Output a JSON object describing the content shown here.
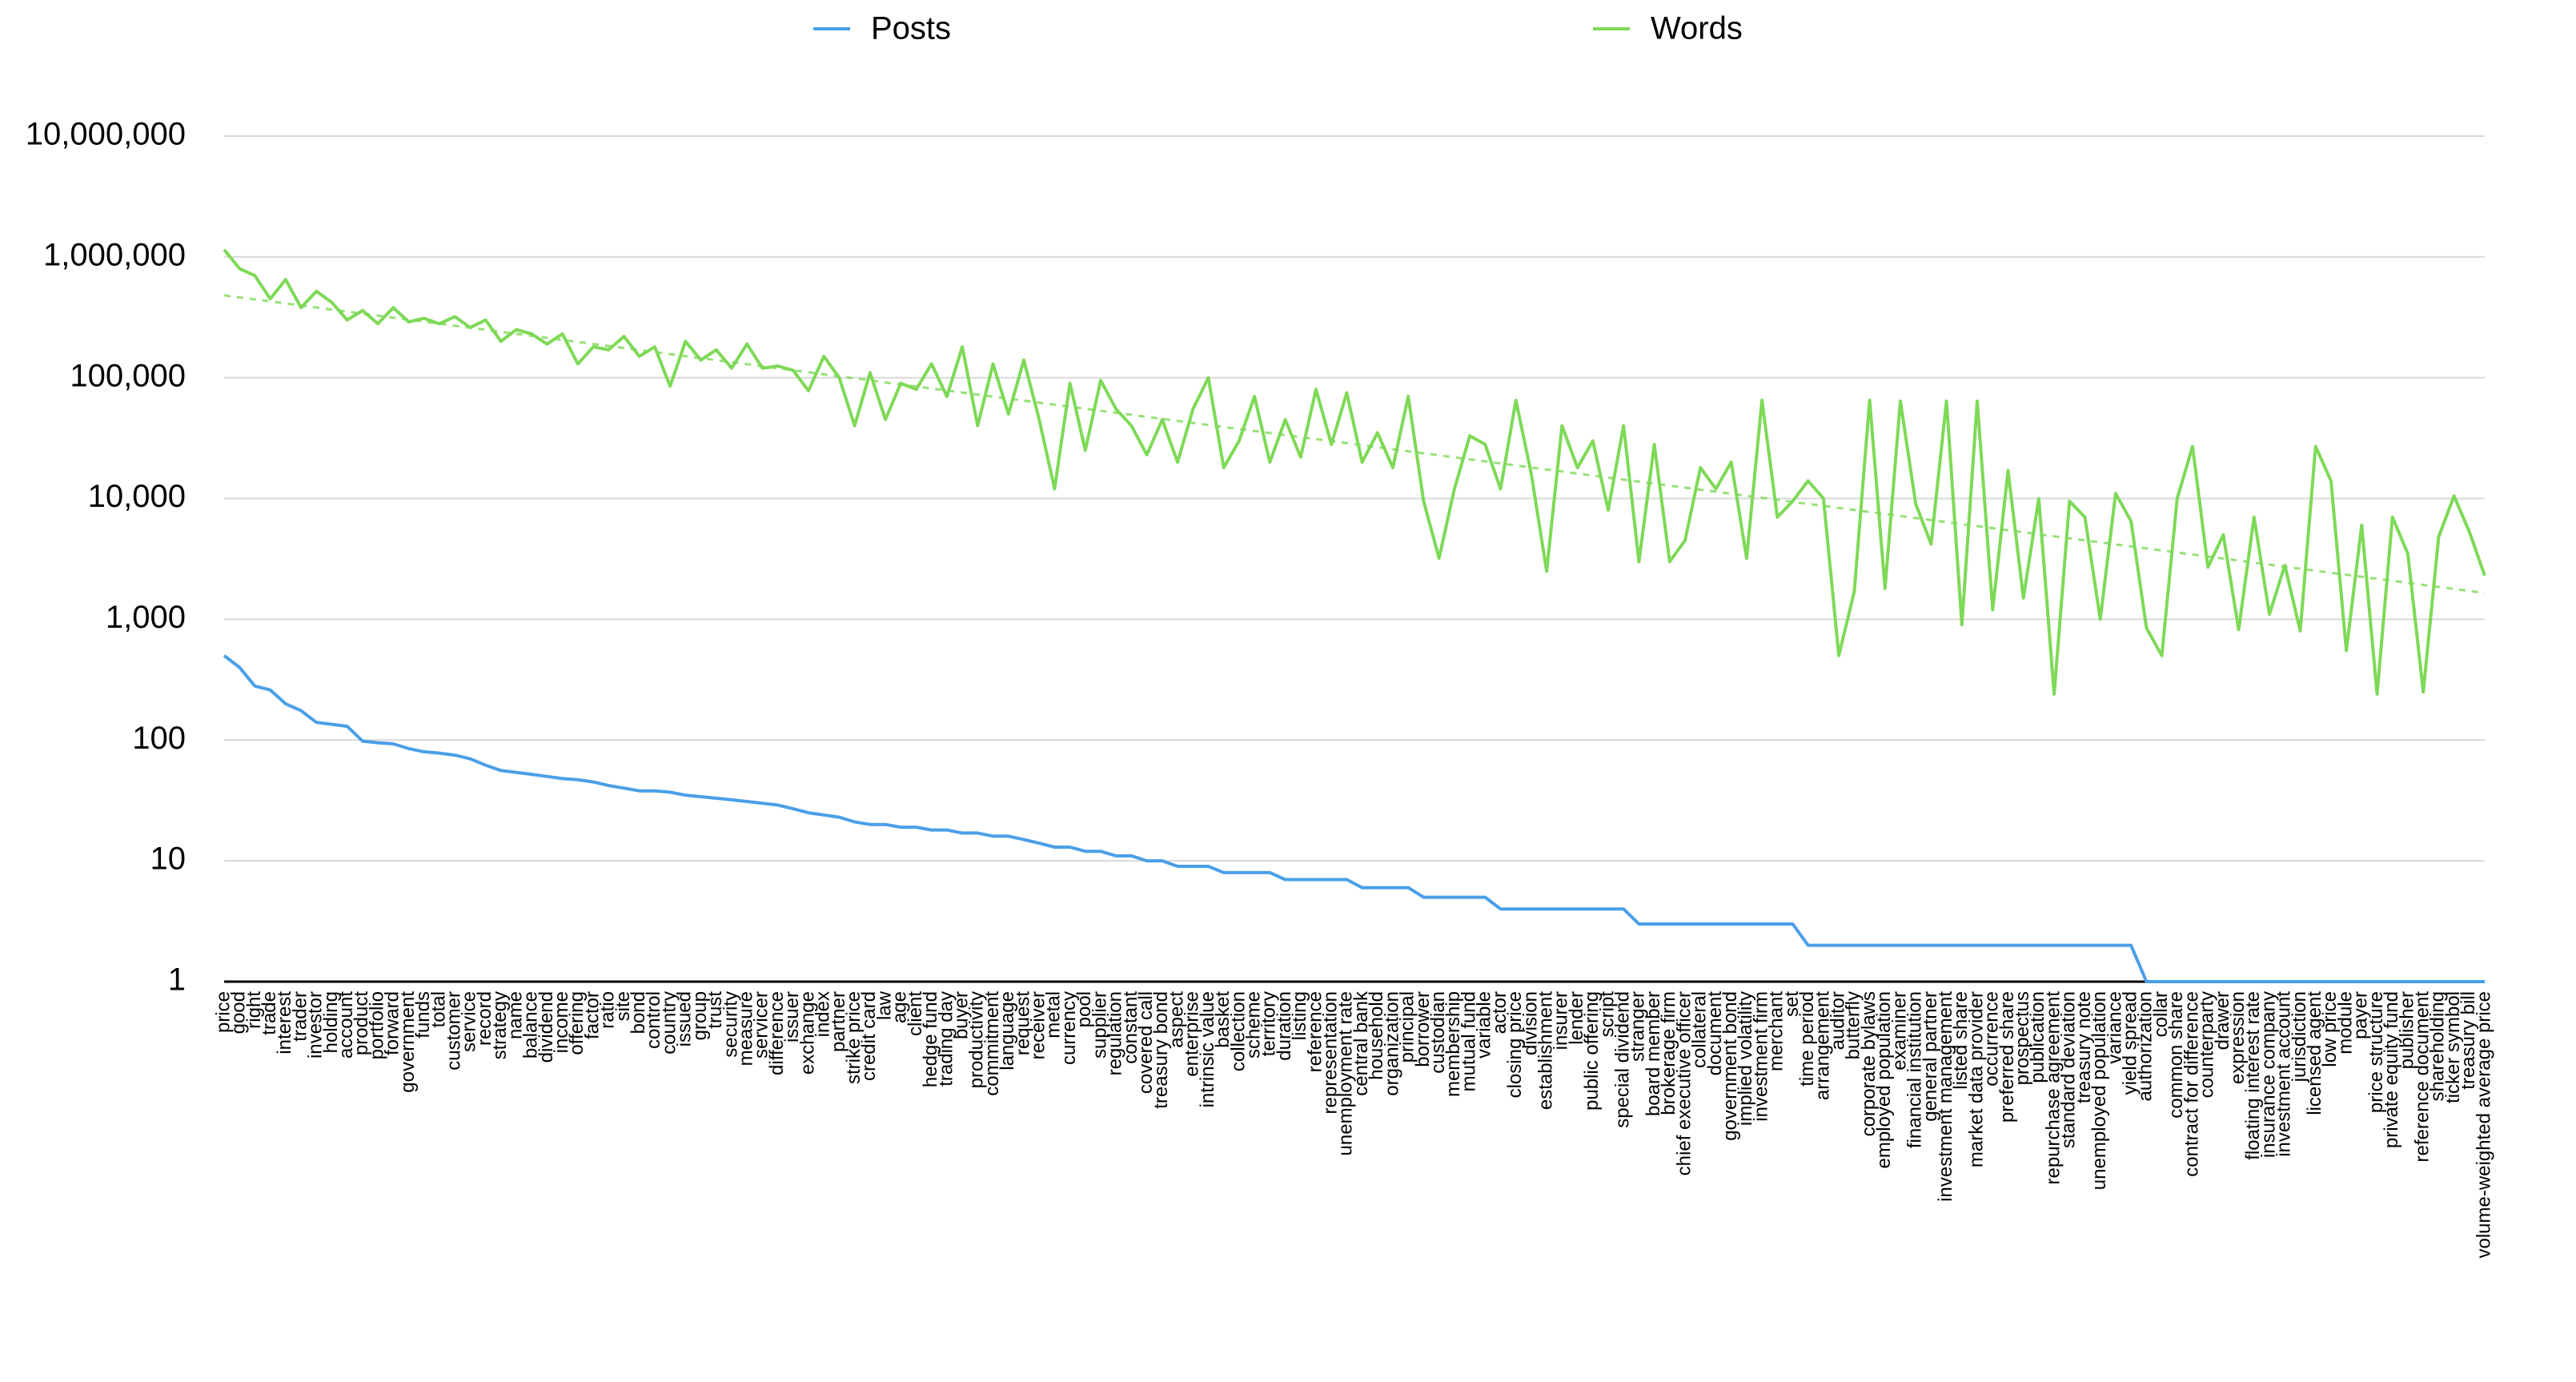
{
  "chart_data": {
    "type": "line",
    "log_scale": true,
    "grid": true,
    "legend_position": "top",
    "categories": [
      "price",
      "good",
      "right",
      "trade",
      "interest",
      "trader",
      "investor",
      "holding",
      "account",
      "product",
      "portfolio",
      "forward",
      "government",
      "funds",
      "total",
      "customer",
      "service",
      "record",
      "strategy",
      "name",
      "balance",
      "dividend",
      "income",
      "offering",
      "factor",
      "ratio",
      "site",
      "bond",
      "control",
      "country",
      "issued",
      "group",
      "trust",
      "security",
      "measure",
      "servicer",
      "difference",
      "issuer",
      "exchange",
      "index",
      "partner",
      "strike price",
      "credit card",
      "law",
      "age",
      "client",
      "hedge fund",
      "trading day",
      "buyer",
      "productivity",
      "commitment",
      "language",
      "request",
      "receiver",
      "metal",
      "currency",
      "pool",
      "supplier",
      "regulation",
      "constant",
      "covered call",
      "treasury bond",
      "aspect",
      "enterprise",
      "intrinsic value",
      "basket",
      "collection",
      "scheme",
      "territory",
      "duration",
      "listing",
      "reference",
      "representation",
      "unemployment rate",
      "central bank",
      "household",
      "organization",
      "principal",
      "borrower",
      "custodian",
      "membership",
      "mutual fund",
      "variable",
      "actor",
      "closing price",
      "division",
      "establishment",
      "insurer",
      "lender",
      "public offering",
      "script",
      "special dividend",
      "stranger",
      "board member",
      "brokerage firm",
      "chief executive officer",
      "collateral",
      "document",
      "government bond",
      "implied volatility",
      "investment firm",
      "merchant",
      "set",
      "time period",
      "arrangement",
      "auditor",
      "butterfly",
      "corporate bylaws",
      "employed population",
      "examiner",
      "financial institution",
      "general partner",
      "investment management",
      "listed share",
      "market data provider",
      "occurrence",
      "preferred share",
      "prospectus",
      "publication",
      "repurchase agreement",
      "standard deviation",
      "treasury note",
      "unemployed population",
      "variance",
      "yield spread",
      "authorization",
      "collar",
      "common share",
      "contract for difference",
      "counterparty",
      "drawer",
      "expression",
      "floating interest rate",
      "insurance company",
      "investment account",
      "jurisdiction",
      "licensed agent",
      "low price",
      "module",
      "payer",
      "price structure",
      "private equity fund",
      "publisher",
      "reference document",
      "shareholding",
      "ticker symbol",
      "treasury bill",
      "volume-weighted average price"
    ],
    "series": [
      {
        "name": "Posts",
        "color": "#4a9fe8",
        "values": [
          500,
          400,
          280,
          260,
          200,
          175,
          140,
          135,
          130,
          98,
          95,
          93,
          85,
          80,
          78,
          75,
          70,
          62,
          56,
          54,
          52,
          50,
          48,
          47,
          45,
          42,
          40,
          38,
          38,
          37,
          35,
          34,
          33,
          32,
          31,
          30,
          29,
          27,
          25,
          24,
          23,
          21,
          20,
          20,
          19,
          19,
          18,
          18,
          17,
          17,
          16,
          16,
          15,
          14,
          13,
          13,
          12,
          12,
          11,
          11,
          10,
          10,
          9,
          9,
          9,
          8,
          8,
          8,
          8,
          7,
          7,
          7,
          7,
          7,
          6,
          6,
          6,
          6,
          5,
          5,
          5,
          5,
          5,
          4,
          4,
          4,
          4,
          4,
          4,
          4,
          4,
          4,
          3,
          3,
          3,
          3,
          3,
          3,
          3,
          3,
          3,
          3,
          3,
          2,
          2,
          2,
          2,
          2,
          2,
          2,
          2,
          2,
          2,
          2,
          2,
          2,
          2,
          2,
          2,
          2,
          2,
          2,
          2,
          2,
          2,
          1,
          1,
          1,
          1,
          1,
          1,
          1,
          1,
          1,
          1,
          1,
          1,
          1,
          1,
          1,
          1,
          1,
          1,
          1,
          1,
          1,
          1,
          1
        ]
      },
      {
        "name": "Words",
        "color": "#7ed957",
        "trendline": true,
        "values": [
          1150000,
          800000,
          700000,
          450000,
          650000,
          380000,
          520000,
          420000,
          300000,
          360000,
          280000,
          380000,
          290000,
          310000,
          280000,
          320000,
          260000,
          300000,
          200000,
          250000,
          230000,
          190000,
          230000,
          130000,
          180000,
          170000,
          220000,
          150000,
          180000,
          85000,
          200000,
          140000,
          170000,
          120000,
          190000,
          120000,
          125000,
          115000,
          78000,
          150000,
          100000,
          40000,
          110000,
          45000,
          90000,
          80000,
          130000,
          70000,
          180000,
          40000,
          130000,
          50000,
          140000,
          45000,
          12000,
          90000,
          25000,
          95000,
          55000,
          40000,
          23000,
          45000,
          20000,
          55000,
          100000,
          18000,
          30000,
          70000,
          20000,
          45000,
          22000,
          80000,
          28000,
          75000,
          20000,
          35000,
          18000,
          70000,
          9500,
          3200,
          12000,
          33000,
          28000,
          12000,
          65000,
          16000,
          2500,
          40000,
          18000,
          30000,
          8000,
          40000,
          3000,
          28000,
          3000,
          4500,
          18000,
          12000,
          20000,
          3200,
          65000,
          7000,
          9500,
          14000,
          10000,
          500,
          1700,
          65000,
          1800,
          64000,
          9000,
          4200,
          64000,
          900,
          64000,
          1200,
          17000,
          1500,
          10000,
          240,
          9500,
          7000,
          1000,
          11000,
          6500,
          850,
          500,
          10000,
          27000,
          2700,
          5000,
          820,
          7000,
          1100,
          2800,
          800,
          27000,
          14000,
          550,
          6000,
          240,
          7000,
          3500,
          250,
          4800,
          10500,
          5300,
          2300
        ]
      }
    ],
    "ylim": [
      1,
      10000000
    ],
    "yticks": [
      1,
      10,
      100,
      {
        "value": 1000,
        "label": "1,000"
      },
      {
        "value": 10000,
        "label": "10,000"
      },
      {
        "value": 100000,
        "label": "100,000"
      },
      {
        "value": 1000000,
        "label": "1,000,000"
      },
      {
        "value": 10000000,
        "label": "10,000,000"
      }
    ]
  }
}
